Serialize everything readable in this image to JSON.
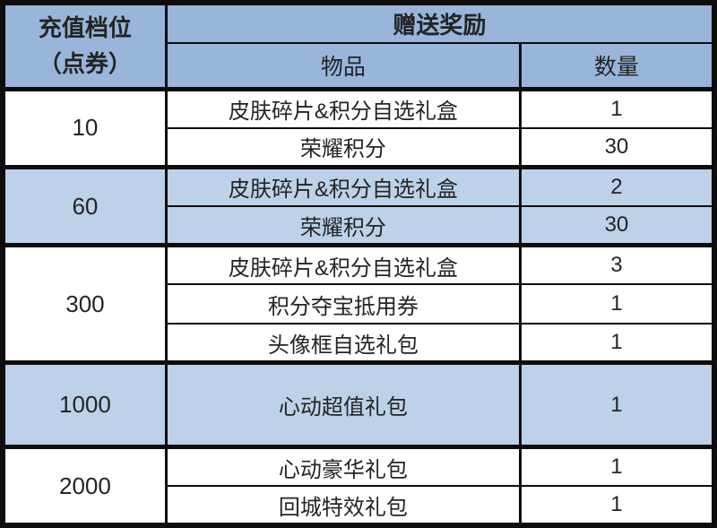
{
  "table": {
    "title_semantic": "recharge-tier-rewards-table",
    "colors": {
      "header_bg": "#99b5da",
      "row_highlight_bg": "#bdd1e8",
      "border": "#0d0d0d",
      "text": "#242424",
      "bg": "#ffffff"
    },
    "header": {
      "tier_label_line1": "充值档位",
      "tier_label_line2": "（点券）",
      "rewards_label": "赠送奖励",
      "item_label": "物品",
      "qty_label": "数量"
    },
    "tiers": [
      {
        "amount": "10",
        "highlight": false,
        "items": [
          {
            "name": "皮肤碎片&积分自选礼盒",
            "qty": "1"
          },
          {
            "name": "荣耀积分",
            "qty": "30"
          }
        ]
      },
      {
        "amount": "60",
        "highlight": true,
        "items": [
          {
            "name": "皮肤碎片&积分自选礼盒",
            "qty": "2"
          },
          {
            "name": "荣耀积分",
            "qty": "30"
          }
        ]
      },
      {
        "amount": "300",
        "highlight": false,
        "items": [
          {
            "name": "皮肤碎片&积分自选礼盒",
            "qty": "3"
          },
          {
            "name": "积分夺宝抵用券",
            "qty": "1"
          },
          {
            "name": "头像框自选礼包",
            "qty": "1"
          }
        ]
      },
      {
        "amount": "1000",
        "highlight": true,
        "items": [
          {
            "name": "心动超值礼包",
            "qty": "1"
          }
        ]
      },
      {
        "amount": "2000",
        "highlight": false,
        "items": [
          {
            "name": "心动豪华礼包",
            "qty": "1"
          },
          {
            "name": "回城特效礼包",
            "qty": "1"
          }
        ]
      }
    ]
  }
}
